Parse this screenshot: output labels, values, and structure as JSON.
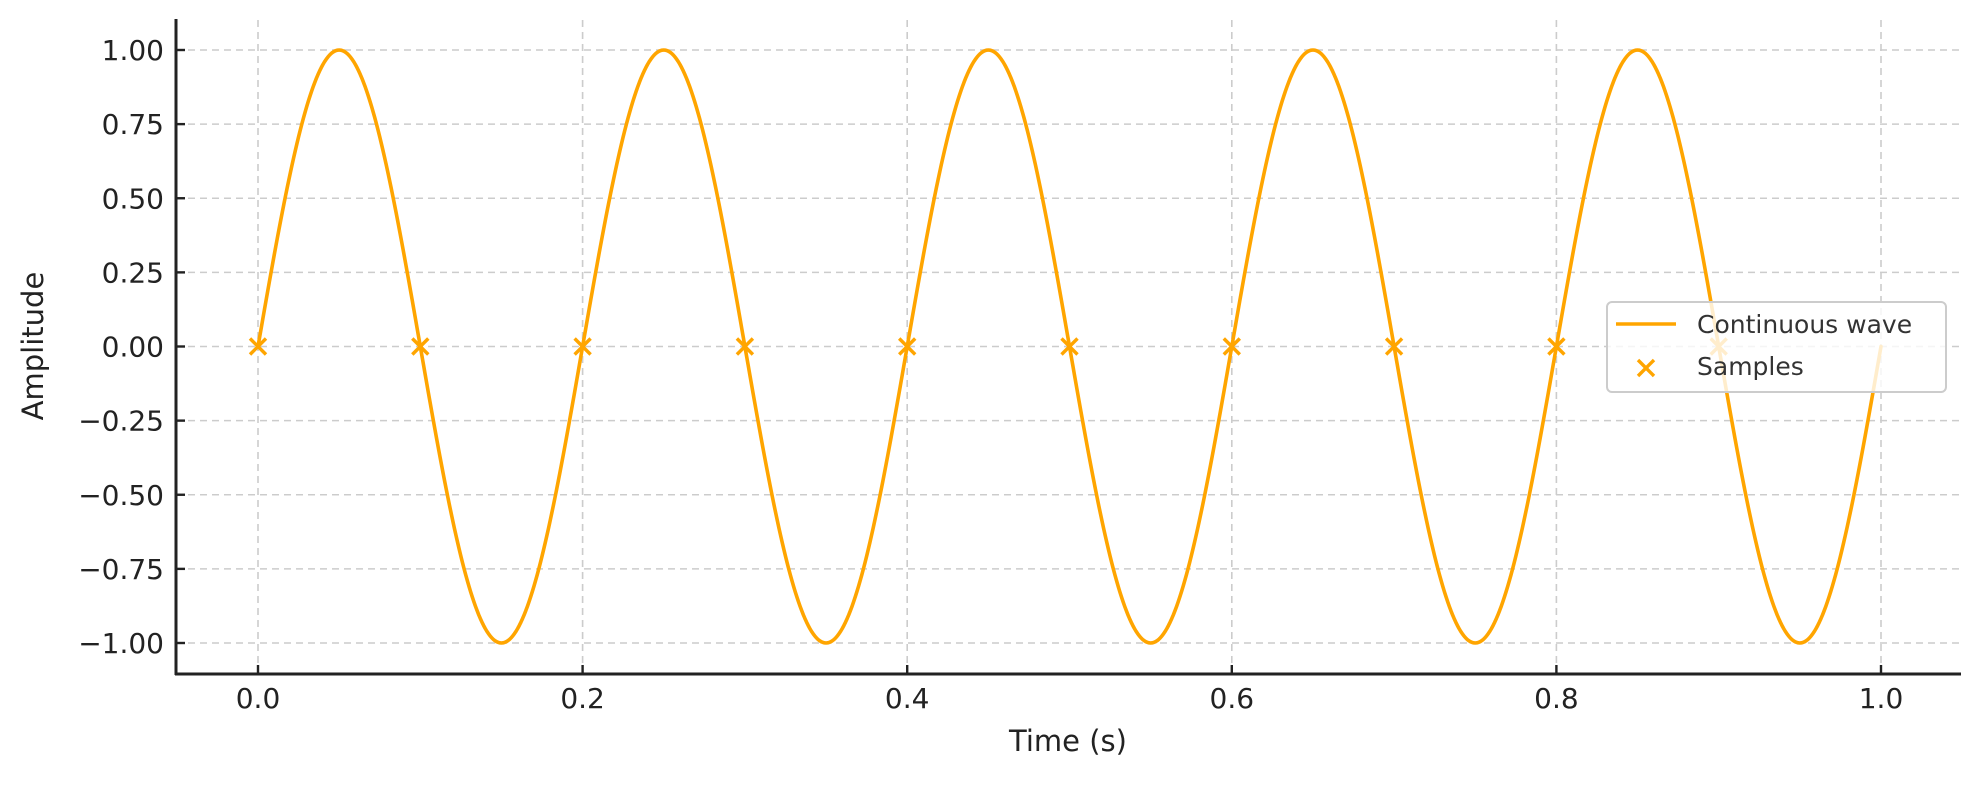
{
  "colors": {
    "series": "#FFA500",
    "grid": "#cccccc",
    "axis": "#222222",
    "legend_border": "#cccccc",
    "legend_text": "#333333"
  },
  "chart_data": {
    "type": "line",
    "title": "",
    "xlabel": "Time (s)",
    "ylabel": "Amplitude",
    "xlim": [
      -0.05,
      1.05
    ],
    "ylim": [
      -1.1,
      1.1
    ],
    "grid": true,
    "legend_position": "center right",
    "x_ticks": [
      0.0,
      0.2,
      0.4,
      0.6,
      0.8,
      1.0
    ],
    "x_tick_labels": [
      "0.0",
      "0.2",
      "0.4",
      "0.6",
      "0.8",
      "1.0"
    ],
    "y_ticks": [
      1.0,
      0.75,
      0.5,
      0.25,
      0.0,
      -0.25,
      -0.5,
      -0.75,
      -1.0
    ],
    "y_tick_labels": [
      "1.00",
      "0.75",
      "0.50",
      "0.25",
      "0.00",
      "−0.25",
      "−0.50",
      "−0.75",
      "−1.00"
    ],
    "series": [
      {
        "name": "Continuous wave",
        "kind": "line",
        "function": "sin(2*pi*5*t)",
        "frequency_hz": 5,
        "amplitude": 1.0,
        "t_start": 0.0,
        "t_end": 1.0,
        "x": [
          0.0,
          0.05,
          0.1,
          0.15,
          0.2,
          0.25,
          0.3,
          0.35,
          0.4,
          0.45,
          0.5,
          0.55,
          0.6,
          0.65,
          0.7,
          0.75,
          0.8,
          0.85,
          0.9,
          0.95,
          1.0
        ],
        "values": [
          0,
          1,
          0,
          -1,
          0,
          1,
          0,
          -1,
          0,
          1,
          0,
          -1,
          0,
          1,
          0,
          -1,
          0,
          1,
          0,
          -1,
          0
        ]
      },
      {
        "name": "Samples",
        "kind": "scatter",
        "marker": "x",
        "x": [
          0.0,
          0.1,
          0.2,
          0.3,
          0.4,
          0.5,
          0.6,
          0.7,
          0.8,
          0.9
        ],
        "values": [
          0,
          0,
          0,
          0,
          0,
          0,
          0,
          0,
          0,
          0
        ]
      }
    ]
  },
  "legend": {
    "items": [
      {
        "label": "Continuous wave",
        "symbol": "line"
      },
      {
        "label": "Samples",
        "symbol": "x-marker"
      }
    ]
  }
}
